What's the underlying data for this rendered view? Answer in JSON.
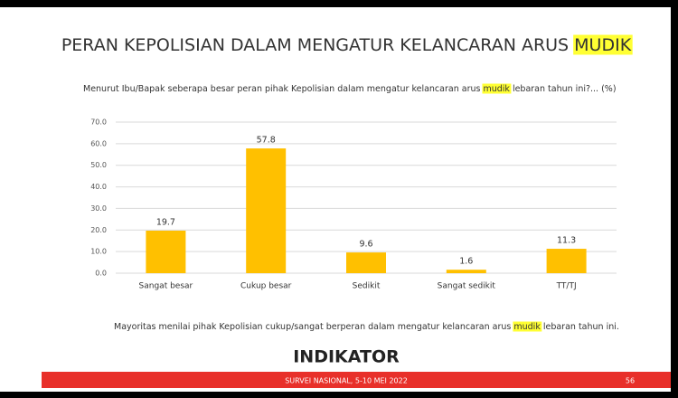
{
  "chart_data": {
    "type": "bar",
    "title": [
      "PERAN KEPOLISIAN DALAM MENGATUR KELANCARAN ARUS ",
      "MUDIK"
    ],
    "subtitle": [
      "Menurut Ibu/Bapak seberapa besar peran pihak Kepolisian dalam mengatur kelancaran arus ",
      "mudik",
      " lebaran tahun ini?... (%)"
    ],
    "categories": [
      "Sangat besar",
      "Cukup besar",
      "Sedikit",
      "Sangat sedikit",
      "TT/TJ"
    ],
    "values": [
      19.7,
      57.8,
      9.6,
      1.6,
      11.3
    ],
    "color": "#ffc000",
    "ylim": [
      0,
      70
    ],
    "yticks": [
      {
        "value": 0,
        "label": "0.0"
      },
      {
        "value": 10,
        "label": "10.0"
      },
      {
        "value": 20,
        "label": "20.0"
      },
      {
        "value": 30,
        "label": "30.0"
      },
      {
        "value": 40,
        "label": "40.0"
      },
      {
        "value": 50,
        "label": "50.0"
      },
      {
        "value": 60,
        "label": "60.0"
      },
      {
        "value": 70,
        "label": "70.0"
      }
    ],
    "grid": true,
    "note": [
      "Mayoritas menilai pihak Kepolisian cukup/sangat berperan dalam mengatur kelancaran arus ",
      "mudik",
      " lebaran tahun ini."
    ]
  },
  "footer": {
    "logo": "INDIKATOR",
    "survey": "SURVEI NASIONAL, 5-10 MEI 2022",
    "page": "56"
  }
}
